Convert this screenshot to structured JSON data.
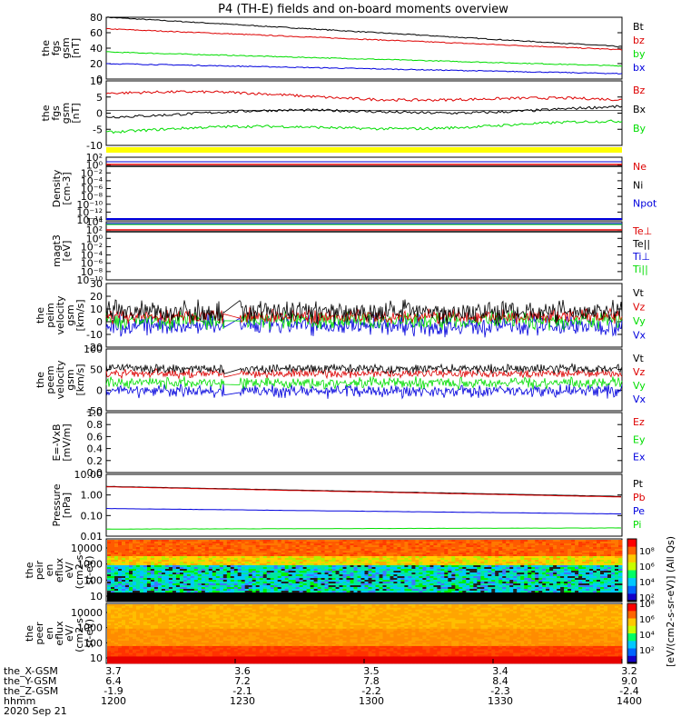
{
  "title": "P4 (TH-E) fields and on-board moments overview",
  "colors": {
    "black": "#000000",
    "red": "#dd0000",
    "green": "#00dd00",
    "blue": "#0000dd",
    "yellow": "#ffff00"
  },
  "chart_data": {
    "type": "line",
    "x_axis": {
      "tick_times": [
        "1200",
        "1230",
        "1300",
        "1330",
        "1400"
      ],
      "rows": [
        {
          "label": "the_X-GSM",
          "values": [
            "3.7",
            "3.6",
            "3.5",
            "3.4",
            "3.2"
          ]
        },
        {
          "label": "the_Y-GSM",
          "values": [
            "6.4",
            "7.2",
            "7.8",
            "8.4",
            "9.0"
          ]
        },
        {
          "label": "the_Z-GSM",
          "values": [
            "-1.9",
            "-2.1",
            "-2.2",
            "-2.3",
            "-2.4"
          ]
        },
        {
          "label": "hhmm",
          "values": [
            "1200",
            "1230",
            "1300",
            "1330",
            "1400"
          ]
        }
      ],
      "date": "2020 Sep 21"
    },
    "panels": [
      {
        "id": "fgs_mag",
        "ylabel": [
          "the",
          "fgs",
          "gsm",
          "[nT]"
        ],
        "ylim": [
          0,
          80
        ],
        "yticks": [
          "0",
          "20",
          "40",
          "60",
          "80"
        ],
        "series": [
          {
            "name": "Bt",
            "color": "black",
            "start": 80,
            "end": 42
          },
          {
            "name": "bz",
            "color": "red",
            "start": 65,
            "end": 38
          },
          {
            "name": "by",
            "color": "green",
            "start": 35,
            "end": 17
          },
          {
            "name": "bx",
            "color": "blue",
            "start": 20,
            "end": 7
          }
        ]
      },
      {
        "id": "fgs_comp",
        "ylabel": [
          "the",
          "fgs",
          "gsm",
          "[nT]"
        ],
        "ylim": [
          -12,
          10
        ],
        "yticks": [
          "-10",
          "-5",
          "0",
          "5",
          "10"
        ],
        "series": [
          {
            "name": "Bz",
            "color": "red",
            "start": 6,
            "end": 3
          },
          {
            "name": "Bx",
            "color": "black",
            "start": -1.5,
            "end": 0.5
          },
          {
            "name": "By",
            "color": "green",
            "start": -7,
            "end": -4.5
          }
        ]
      },
      {
        "id": "density",
        "ylabel": [
          "Density",
          "[cm-3]"
        ],
        "yticks": [
          "10²",
          "10⁰",
          "10⁻²",
          "10⁻⁴",
          "10⁻⁶",
          "10⁻⁸",
          "10⁻¹⁰",
          "10⁻¹²",
          "10⁻¹⁴"
        ],
        "series": [
          {
            "name": "Ne",
            "color": "red"
          },
          {
            "name": "Ni",
            "color": "black"
          },
          {
            "name": "Npot",
            "color": "blue"
          }
        ]
      },
      {
        "id": "temperature",
        "ylabel": [
          "magt3",
          "[eV]"
        ],
        "yticks": [
          "10⁴",
          "10²",
          "10⁰",
          "10⁻²",
          "10⁻⁴",
          "10⁻⁶",
          "10⁻⁸",
          "10⁻¹⁰"
        ],
        "series": [
          {
            "name": "Te⊥",
            "color": "red"
          },
          {
            "name": "Te||",
            "color": "black"
          },
          {
            "name": "Ti⊥",
            "color": "blue"
          },
          {
            "name": "Ti||",
            "color": "green"
          }
        ]
      },
      {
        "id": "peim_velocity",
        "ylabel": [
          "the",
          "peim",
          "velocity",
          "gsm",
          "[km/s]"
        ],
        "ylim": [
          -20,
          30
        ],
        "yticks": [
          "-20",
          "-10",
          "0",
          "10",
          "20",
          "30"
        ],
        "series": [
          {
            "name": "Vt",
            "color": "black"
          },
          {
            "name": "Vz",
            "color": "red"
          },
          {
            "name": "Vy",
            "color": "green"
          },
          {
            "name": "Vx",
            "color": "blue"
          }
        ]
      },
      {
        "id": "peem_velocity",
        "ylabel": [
          "the",
          "peem",
          "velocity",
          "gsm",
          "[km/s]"
        ],
        "ylim": [
          -50,
          100
        ],
        "yticks": [
          "-50",
          "0",
          "50",
          "100"
        ],
        "series": [
          {
            "name": "Vt",
            "color": "black"
          },
          {
            "name": "Vz",
            "color": "red"
          },
          {
            "name": "Vy",
            "color": "green"
          },
          {
            "name": "Vx",
            "color": "blue"
          }
        ]
      },
      {
        "id": "efield",
        "ylabel": [
          "E=-VxB",
          "[mV/m]"
        ],
        "ylim": [
          0,
          1
        ],
        "yticks": [
          "0.0",
          "0.2",
          "0.4",
          "0.6",
          "0.8",
          "1.0"
        ],
        "series": [
          {
            "name": "Ez",
            "color": "red"
          },
          {
            "name": "Ey",
            "color": "green"
          },
          {
            "name": "Ex",
            "color": "blue"
          }
        ]
      },
      {
        "id": "pressure",
        "ylabel": [
          "Pressure",
          "[nPa]"
        ],
        "yticks": [
          "10.00",
          "1.00",
          "0.10",
          "0.01"
        ],
        "series": [
          {
            "name": "Pt",
            "color": "black",
            "start": 2.6,
            "end": 0.85
          },
          {
            "name": "Pb",
            "color": "red",
            "start": 2.5,
            "end": 0.8
          },
          {
            "name": "Pe",
            "color": "blue",
            "start": 0.22,
            "end": 0.12
          },
          {
            "name": "Pi",
            "color": "green",
            "start": 0.022,
            "end": 0.025
          }
        ]
      },
      {
        "id": "peir_spec",
        "ylabel": [
          "the",
          "peir",
          "en",
          "eflux",
          "eV/",
          "(cm2-s-",
          "sr-eV)"
        ],
        "yticks": [
          "10000",
          "1000",
          "100",
          "10"
        ]
      },
      {
        "id": "peer_spec",
        "ylabel": [
          "the",
          "peer",
          "en",
          "eflux",
          "eV/",
          "(cm2-s-",
          "sr-eV)"
        ],
        "yticks": [
          "10000",
          "1000",
          "100",
          "10"
        ]
      }
    ],
    "colorbar": {
      "label": "[eV/(cm2-s-sr-eV)] (All Qs)",
      "upper_ticks": [
        "10⁸",
        "10⁶",
        "10⁴",
        "10²"
      ],
      "lower_ticks": [
        "10⁸",
        "10⁶",
        "10⁴",
        "10²"
      ]
    },
    "gap": {
      "start_fraction": 0.23,
      "end_fraction": 0.245
    }
  }
}
